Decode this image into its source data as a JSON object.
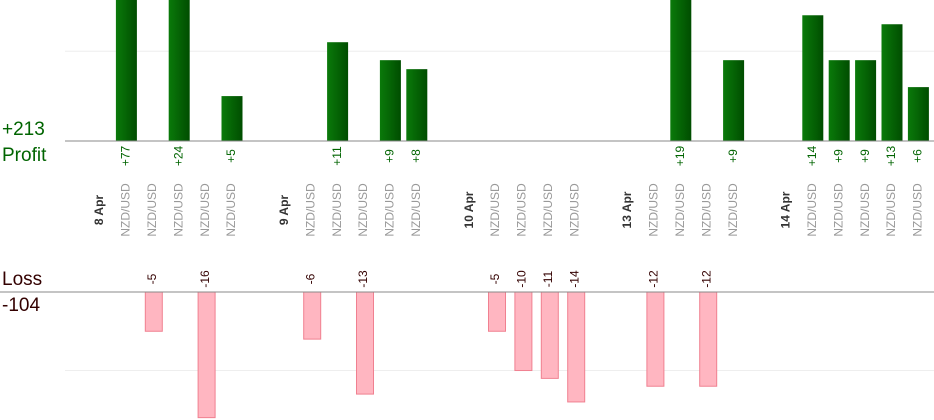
{
  "chart_data": {
    "type": "bar",
    "profit_label": "Profit",
    "loss_label": "Loss",
    "profit_total": "+213",
    "loss_total": "-104",
    "profit_color": "#006400",
    "loss_color": "#ffb6c1",
    "ylim": [
      0,
      15.7
    ],
    "yticks": [
      10
    ],
    "y2lim": [
      -16.3,
      0
    ],
    "y2ticks": [
      -10
    ],
    "grid": true,
    "groups": [
      {
        "date": "8 Apr",
        "trades": [
          {
            "symbol": "NZD/USD",
            "value": 77,
            "value_label": "+77"
          },
          {
            "symbol": "NZD/USD",
            "value": -5
          },
          {
            "symbol": "NZD/USD",
            "value": 24,
            "value_label": "+24"
          },
          {
            "symbol": "NZD/USD",
            "value": -16
          },
          {
            "symbol": "NZD/USD",
            "value": 5,
            "value_label": "+5"
          }
        ]
      },
      {
        "date": "9 Apr",
        "trades": [
          {
            "symbol": "NZD/USD",
            "value": -6
          },
          {
            "symbol": "NZD/USD",
            "value": 11,
            "value_label": "+11"
          },
          {
            "symbol": "NZD/USD",
            "value": -13
          },
          {
            "symbol": "NZD/USD",
            "value": 9,
            "value_label": "+9"
          },
          {
            "symbol": "NZD/USD",
            "value": 8,
            "value_label": "+8"
          }
        ]
      },
      {
        "date": "10 Apr",
        "trades": [
          {
            "symbol": "NZD/USD",
            "value": -5
          },
          {
            "symbol": "NZD/USD",
            "value": -10
          },
          {
            "symbol": "NZD/USD",
            "value": -11
          },
          {
            "symbol": "NZD/USD",
            "value": -14
          }
        ]
      },
      {
        "date": "13 Apr",
        "trades": [
          {
            "symbol": "NZD/USD",
            "value": -12
          },
          {
            "symbol": "NZD/USD",
            "value": 19,
            "value_label": "+19"
          },
          {
            "symbol": "NZD/USD",
            "value": -12
          },
          {
            "symbol": "NZD/USD",
            "value": 9,
            "value_label": "+9"
          }
        ]
      },
      {
        "date": "14 Apr",
        "trades": [
          {
            "symbol": "NZD/USD",
            "value": 14,
            "value_label": "+14"
          },
          {
            "symbol": "NZD/USD",
            "value": 9,
            "value_label": "+9"
          },
          {
            "symbol": "NZD/USD",
            "value": 9,
            "value_label": "+9"
          },
          {
            "symbol": "NZD/USD",
            "value": 13,
            "value_label": "+13"
          },
          {
            "symbol": "NZD/USD",
            "value": 6,
            "value_label": "+6"
          }
        ]
      }
    ]
  }
}
